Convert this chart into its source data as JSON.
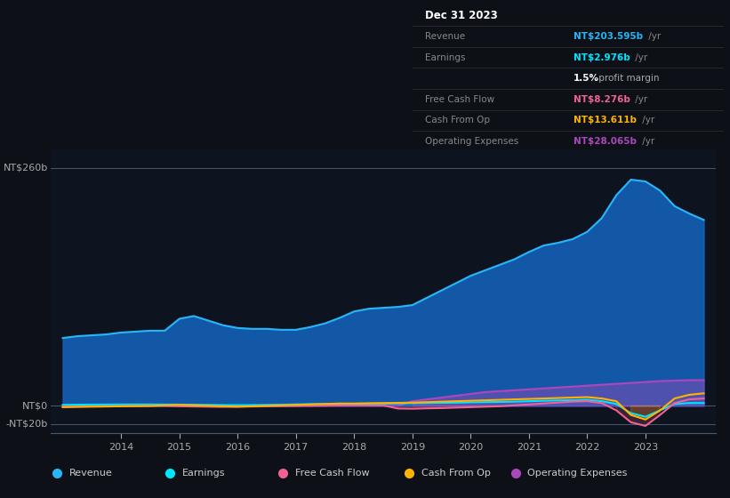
{
  "background_color": "#0d1117",
  "chart_bg_color": "#0d1420",
  "years": [
    2013.0,
    2013.25,
    2013.5,
    2013.75,
    2014.0,
    2014.25,
    2014.5,
    2014.75,
    2015.0,
    2015.25,
    2015.5,
    2015.75,
    2016.0,
    2016.25,
    2016.5,
    2016.75,
    2017.0,
    2017.25,
    2017.5,
    2017.75,
    2018.0,
    2018.25,
    2018.5,
    2018.75,
    2019.0,
    2019.25,
    2019.5,
    2019.75,
    2020.0,
    2020.25,
    2020.5,
    2020.75,
    2021.0,
    2021.25,
    2021.5,
    2021.75,
    2022.0,
    2022.25,
    2022.5,
    2022.75,
    2023.0,
    2023.25,
    2023.5,
    2023.75,
    2024.0
  ],
  "revenue": [
    74,
    76,
    77,
    78,
    80,
    81,
    82,
    82,
    95,
    98,
    93,
    88,
    85,
    84,
    84,
    83,
    83,
    86,
    90,
    96,
    103,
    106,
    107,
    108,
    110,
    118,
    126,
    134,
    142,
    148,
    154,
    160,
    168,
    175,
    178,
    182,
    190,
    205,
    230,
    247,
    245,
    235,
    218,
    210,
    203
  ],
  "earnings": [
    1,
    1.2,
    1.3,
    1.4,
    1.5,
    1.5,
    1.5,
    1.4,
    1.3,
    1.2,
    1.0,
    0.8,
    0.7,
    0.8,
    1.0,
    1.2,
    1.5,
    1.8,
    2.0,
    2.2,
    2.2,
    2.3,
    2.4,
    2.5,
    2.8,
    3.0,
    3.2,
    3.4,
    3.8,
    4.0,
    4.2,
    4.5,
    5.0,
    5.5,
    5.8,
    6.0,
    6.5,
    5.0,
    2.0,
    -8.0,
    -12,
    -5,
    2,
    3,
    3
  ],
  "free_cash_flow": [
    -1,
    -0.8,
    -0.6,
    -0.5,
    -0.4,
    -0.3,
    -0.2,
    -0.1,
    -0.5,
    -0.8,
    -1.0,
    -1.2,
    -1.0,
    -0.8,
    -0.6,
    -0.4,
    -0.2,
    0.0,
    0.2,
    0.4,
    0.6,
    0.5,
    0.4,
    -3.0,
    -3.2,
    -2.8,
    -2.5,
    -2.0,
    -1.5,
    -1.0,
    -0.5,
    0.5,
    1.5,
    2.5,
    3.5,
    4.5,
    5.0,
    3.0,
    -5.0,
    -18.0,
    -22,
    -10,
    3,
    7,
    8
  ],
  "cash_from_op": [
    -1.5,
    -1.2,
    -1.0,
    -0.8,
    -0.5,
    -0.3,
    -0.1,
    0.5,
    1.0,
    0.5,
    0.0,
    -0.5,
    -1.0,
    -0.5,
    0.0,
    0.5,
    1.0,
    1.5,
    2.0,
    2.5,
    2.5,
    2.8,
    3.0,
    3.2,
    3.5,
    4.0,
    4.5,
    5.0,
    5.5,
    6.0,
    6.5,
    7.0,
    7.5,
    8.0,
    8.5,
    9.0,
    9.5,
    8.0,
    5.0,
    -10.0,
    -15,
    -5,
    8,
    12,
    13.6
  ],
  "operating_expenses": [
    0,
    0,
    0,
    0,
    0,
    0,
    0,
    0,
    0,
    0,
    0,
    0,
    0,
    0,
    0,
    0,
    0,
    0,
    0,
    0,
    0,
    0,
    0,
    0,
    5,
    7,
    9,
    11,
    13,
    15,
    16,
    17,
    18,
    19,
    20,
    21,
    22,
    23,
    24,
    25,
    26,
    27,
    27.5,
    28,
    28
  ],
  "revenue_color": "#29b6f6",
  "earnings_color": "#00e5ff",
  "fcf_color": "#f06292",
  "cfo_color": "#ffb300",
  "opex_color": "#ab47bc",
  "revenue_fill": "#1565c0",
  "ylim_min": -30,
  "ylim_max": 280,
  "xtick_years": [
    2014,
    2015,
    2016,
    2017,
    2018,
    2019,
    2020,
    2021,
    2022,
    2023
  ],
  "info_box": {
    "date": "Dec 31 2023",
    "revenue_label": "Revenue",
    "revenue_value": "NT$203.595b",
    "revenue_color": "#29b6f6",
    "earnings_label": "Earnings",
    "earnings_value": "NT$2.976b",
    "earnings_color": "#00e5ff",
    "margin_text": "1.5% profit margin",
    "fcf_label": "Free Cash Flow",
    "fcf_value": "NT$8.276b",
    "fcf_color": "#f06292",
    "cfo_label": "Cash From Op",
    "cfo_value": "NT$13.611b",
    "cfo_color": "#ffb300",
    "opex_label": "Operating Expenses",
    "opex_value": "NT$28.065b",
    "opex_color": "#ab47bc"
  },
  "legend": [
    {
      "label": "Revenue",
      "color": "#29b6f6"
    },
    {
      "label": "Earnings",
      "color": "#00e5ff"
    },
    {
      "label": "Free Cash Flow",
      "color": "#f06292"
    },
    {
      "label": "Cash From Op",
      "color": "#ffb300"
    },
    {
      "label": "Operating Expenses",
      "color": "#ab47bc"
    }
  ]
}
